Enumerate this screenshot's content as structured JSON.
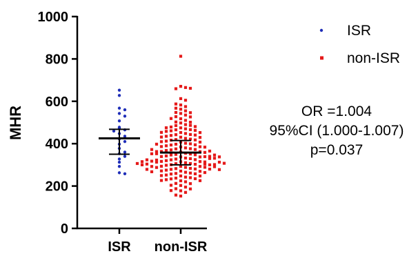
{
  "chart_data": {
    "type": "scatter",
    "subtype": "dot-plot-with-mean-and-sd",
    "ylabel": "MHR",
    "ylim": [
      0,
      1000
    ],
    "yticks": [
      0,
      200,
      400,
      600,
      800,
      1000
    ],
    "categories": [
      "ISR",
      "non-ISR"
    ],
    "legend": {
      "placement": "top-right",
      "entries": [
        {
          "name": "ISR",
          "color": "#1f2eb8",
          "marker": "circle"
        },
        {
          "name": "non-ISR",
          "color": "#e51a1a",
          "marker": "square"
        }
      ]
    },
    "series": [
      {
        "name": "ISR",
        "color": "#1f2eb8",
        "mean": 425,
        "sd_low": 350,
        "sd_high": 468,
        "values": [
          650,
          625,
          565,
          560,
          540,
          530,
          505,
          475,
          470,
          465,
          462,
          445,
          435,
          420,
          410,
          395,
          375,
          360,
          350,
          340,
          325,
          310,
          290,
          260,
          258
        ]
      },
      {
        "name": "non-ISR",
        "color": "#e51a1a",
        "mean": 358,
        "sd_low": 300,
        "sd_high": 415,
        "values": [
          810,
          668,
          665,
          662,
          660,
          610,
          605,
          590,
          580,
          575,
          570,
          560,
          555,
          550,
          545,
          540,
          535,
          530,
          525,
          520,
          515,
          510,
          505,
          500,
          495,
          490,
          488,
          485,
          480,
          478,
          475,
          472,
          470,
          468,
          465,
          462,
          460,
          458,
          455,
          452,
          450,
          448,
          445,
          442,
          440,
          438,
          435,
          432,
          430,
          428,
          425,
          422,
          420,
          418,
          415,
          412,
          410,
          408,
          405,
          402,
          400,
          398,
          395,
          392,
          390,
          388,
          385,
          382,
          380,
          378,
          375,
          372,
          370,
          368,
          365,
          362,
          360,
          358,
          355,
          352,
          350,
          348,
          345,
          342,
          340,
          338,
          335,
          332,
          330,
          328,
          325,
          322,
          320,
          318,
          315,
          312,
          310,
          308,
          305,
          302,
          300,
          298,
          295,
          292,
          290,
          288,
          285,
          282,
          280,
          278,
          275,
          272,
          270,
          268,
          265,
          262,
          260,
          258,
          255,
          252,
          250,
          248,
          245,
          242,
          240,
          238,
          235,
          232,
          230,
          228,
          225,
          222,
          220,
          215,
          210,
          205,
          200,
          195,
          190,
          185,
          180,
          175,
          170,
          160,
          150,
          305,
          310,
          315,
          300,
          295,
          320,
          330,
          340,
          290,
          285,
          280,
          350,
          360,
          270,
          265,
          300,
          305,
          310,
          320,
          330,
          340,
          355,
          365,
          375,
          385,
          395,
          300,
          310,
          290,
          280,
          275,
          325,
          335,
          345,
          315,
          305
        ]
      }
    ],
    "annotation": [
      "OR =1.004",
      "95%CI (1.000-1.007)",
      "p=0.037"
    ]
  }
}
